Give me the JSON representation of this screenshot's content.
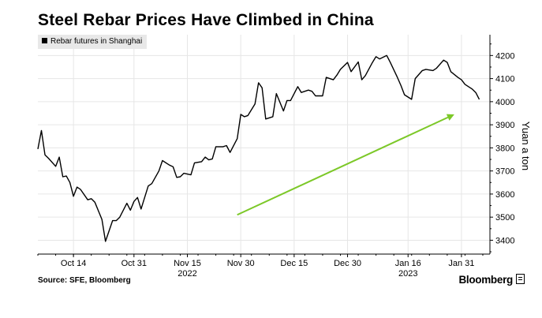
{
  "chart_data": {
    "type": "line",
    "title": "Steel Rebar Prices Have Climbed in China",
    "series": [
      {
        "name": "Rebar futures in Shanghai",
        "color": "#000000",
        "x": [
          "2022-10-04",
          "2022-10-05",
          "2022-10-06",
          "2022-10-07",
          "2022-10-09",
          "2022-10-10",
          "2022-10-11",
          "2022-10-12",
          "2022-10-13",
          "2022-10-14",
          "2022-10-15",
          "2022-10-16",
          "2022-10-18",
          "2022-10-19",
          "2022-10-20",
          "2022-10-22",
          "2022-10-23",
          "2022-10-25",
          "2022-10-26",
          "2022-10-27",
          "2022-10-29",
          "2022-10-30",
          "2022-10-31",
          "2022-11-01",
          "2022-11-02",
          "2022-11-04",
          "2022-11-05",
          "2022-11-07",
          "2022-11-08",
          "2022-11-10",
          "2022-11-11",
          "2022-11-12",
          "2022-11-13",
          "2022-11-14",
          "2022-11-16",
          "2022-11-17",
          "2022-11-19",
          "2022-11-20",
          "2022-11-21",
          "2022-11-22",
          "2022-11-23",
          "2022-11-25",
          "2022-11-26",
          "2022-11-27",
          "2022-11-29",
          "2022-11-30",
          "2022-12-01",
          "2022-12-02",
          "2022-12-04",
          "2022-12-05",
          "2022-12-06",
          "2022-12-07",
          "2022-12-09",
          "2022-12-10",
          "2022-12-12",
          "2022-12-13",
          "2022-12-14",
          "2022-12-16",
          "2022-12-17",
          "2022-12-19",
          "2022-12-20",
          "2022-12-21",
          "2022-12-23",
          "2022-12-24",
          "2022-12-26",
          "2022-12-27",
          "2022-12-28",
          "2022-12-30",
          "2022-12-31",
          "2023-01-02",
          "2023-01-03",
          "2023-01-04",
          "2023-01-06",
          "2023-01-07",
          "2023-01-08",
          "2023-01-10",
          "2023-01-11",
          "2023-01-13",
          "2023-01-14",
          "2023-01-15",
          "2023-01-17",
          "2023-01-18",
          "2023-01-20",
          "2023-01-21",
          "2023-01-23",
          "2023-01-24",
          "2023-01-26",
          "2023-01-27",
          "2023-01-28",
          "2023-01-30",
          "2023-01-31",
          "2023-02-01",
          "2023-02-03",
          "2023-02-04",
          "2023-02-05"
        ],
        "values": [
          3795,
          3875,
          3770,
          3755,
          3720,
          3760,
          3675,
          3678,
          3650,
          3590,
          3630,
          3620,
          3575,
          3580,
          3565,
          3490,
          3395,
          3485,
          3485,
          3500,
          3560,
          3530,
          3568,
          3585,
          3535,
          3635,
          3645,
          3700,
          3745,
          3725,
          3718,
          3672,
          3675,
          3690,
          3683,
          3735,
          3740,
          3760,
          3748,
          3752,
          3805,
          3805,
          3810,
          3780,
          3840,
          3945,
          3935,
          3940,
          3990,
          4082,
          4060,
          3925,
          3935,
          4035,
          3960,
          4005,
          4005,
          4065,
          4040,
          4050,
          4045,
          4025,
          4025,
          4105,
          4095,
          4115,
          4140,
          4170,
          4130,
          4172,
          4095,
          4113,
          4170,
          4195,
          4185,
          4200,
          4170,
          4105,
          4070,
          4030,
          4010,
          4100,
          4135,
          4140,
          4135,
          4145,
          4180,
          4170,
          4130,
          4105,
          4095,
          4075,
          4055,
          4040,
          4010
        ]
      }
    ],
    "ylabel": "Yuan a ton",
    "ylim": [
      3340,
      4290
    ],
    "yticks": [
      "3400",
      "3500",
      "3600",
      "3700",
      "3800",
      "3900",
      "4000",
      "4100",
      "4200"
    ],
    "xticks": [
      {
        "date": "2022-10-14",
        "label": "Oct 14"
      },
      {
        "date": "2022-10-31",
        "label": "Oct 31"
      },
      {
        "date": "2022-11-15",
        "label": "Nov 15"
      },
      {
        "date": "2022-11-30",
        "label": "Nov 30"
      },
      {
        "date": "2022-12-15",
        "label": "Dec 15"
      },
      {
        "date": "2022-12-30",
        "label": "Dec 30"
      },
      {
        "date": "2023-01-16",
        "label": "Jan 16"
      },
      {
        "date": "2023-01-31",
        "label": "Jan 31"
      }
    ],
    "year_labels": [
      {
        "date": "2022-11-15",
        "label": "2022"
      },
      {
        "date": "2023-01-16",
        "label": "2023"
      }
    ],
    "xlim": [
      "2022-10-04",
      "2023-02-08"
    ],
    "grid": true,
    "legend_position": "top-left",
    "annotation_arrow": {
      "from": {
        "x": "2022-11-29",
        "y": 3510
      },
      "to": {
        "x": "2023-01-29",
        "y": 3945
      },
      "color": "#7cc828"
    }
  },
  "footer": {
    "source": "Source: SFE, Bloomberg",
    "brand": "Bloomberg"
  }
}
